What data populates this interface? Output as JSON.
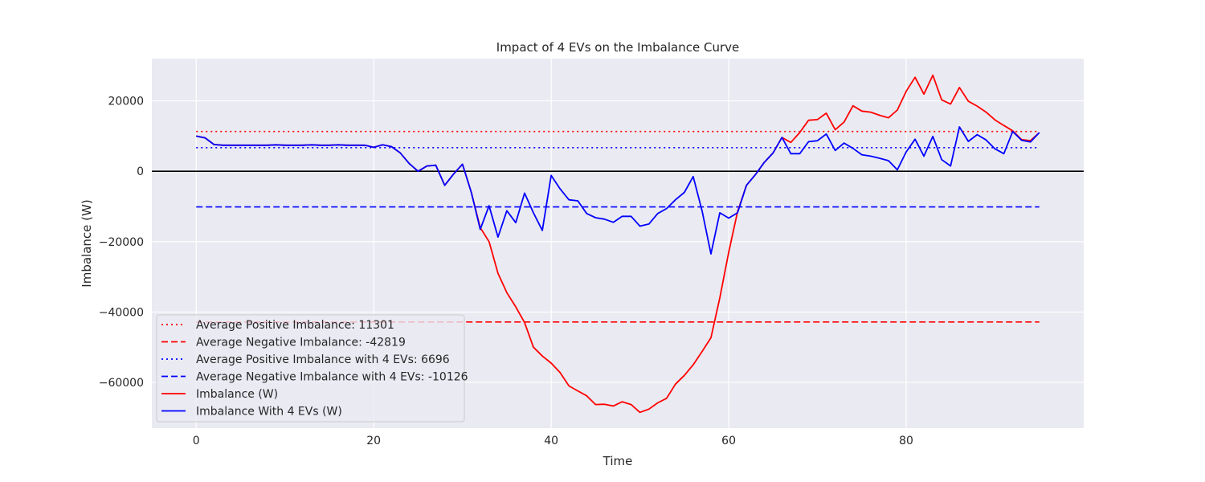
{
  "chart_data": {
    "type": "line",
    "title": "Impact of 4 EVs on the Imbalance Curve",
    "xlabel": "Time",
    "ylabel": "Imbalance (W)",
    "xlim": [
      -5,
      100
    ],
    "ylim": [
      -73000,
      32000
    ],
    "xticks": [
      0,
      20,
      40,
      60,
      80
    ],
    "yticks": [
      -60000,
      -40000,
      -20000,
      0,
      20000
    ],
    "ytick_labels": [
      "−60000",
      "−40000",
      "−20000",
      "0",
      "20000"
    ],
    "grid": true,
    "zero_line": true,
    "legend_position": "lower-left",
    "hlines": [
      {
        "name": "Average Positive Imbalance: 11301",
        "y": 11301,
        "color": "#ff0000",
        "dash": "dotted",
        "x_range": [
          0,
          95
        ]
      },
      {
        "name": "Average Negative Imbalance: -42819",
        "y": -42819,
        "color": "#ff0000",
        "dash": "dashed",
        "x_range": [
          0,
          95
        ]
      },
      {
        "name": "Average Positive Imbalance with 4 EVs: 6696",
        "y": 6696,
        "color": "#0000ff",
        "dash": "dotted",
        "x_range": [
          0,
          95
        ]
      },
      {
        "name": "Average Negative Imbalance with 4 EVs: -10126",
        "y": -10126,
        "color": "#0000ff",
        "dash": "dashed",
        "x_range": [
          0,
          95
        ]
      }
    ],
    "series": [
      {
        "name": "Imbalance (W)",
        "color": "#ff0000",
        "x": [
          0,
          1,
          2,
          3,
          4,
          5,
          6,
          7,
          8,
          9,
          10,
          11,
          12,
          13,
          14,
          15,
          16,
          17,
          18,
          19,
          20,
          21,
          22,
          23,
          24,
          25,
          26,
          27,
          28,
          29,
          30,
          31,
          32,
          33,
          34,
          35,
          36,
          37,
          38,
          39,
          40,
          41,
          42,
          43,
          44,
          45,
          46,
          47,
          48,
          49,
          50,
          51,
          52,
          53,
          54,
          55,
          56,
          57,
          58,
          59,
          60,
          61,
          62,
          63,
          64,
          65,
          66,
          67,
          68,
          69,
          70,
          71,
          72,
          73,
          74,
          75,
          76,
          77,
          78,
          79,
          80,
          81,
          82,
          83,
          84,
          85,
          86,
          87,
          88,
          89,
          90,
          91,
          92,
          93,
          94,
          95
        ],
        "values": [
          10000,
          9500,
          7600,
          7400,
          7400,
          7400,
          7400,
          7400,
          7400,
          7500,
          7400,
          7400,
          7400,
          7500,
          7400,
          7400,
          7500,
          7400,
          7400,
          7400,
          6800,
          7500,
          7000,
          5200,
          2200,
          0,
          1500,
          1700,
          -4000,
          -800,
          2000,
          -6000,
          -16000,
          -20000,
          -29000,
          -34500,
          -38500,
          -43000,
          -50000,
          -52500,
          -54500,
          -57200,
          -61000,
          -62400,
          -63800,
          -66300,
          -66200,
          -66700,
          -65500,
          -66300,
          -68500,
          -67600,
          -65800,
          -64500,
          -60500,
          -58000,
          -55000,
          -51200,
          -47300,
          -36000,
          -23000,
          -11500,
          -4000,
          -1000,
          2500,
          5200,
          9600,
          8200,
          11000,
          14500,
          14700,
          16500,
          11800,
          14000,
          18600,
          17100,
          16800,
          15900,
          15200,
          17400,
          22700,
          26700,
          21900,
          27300,
          20300,
          19100,
          23800,
          19900,
          18500,
          16800,
          14600,
          13000,
          11500,
          9000,
          8700,
          11000
        ]
      },
      {
        "name": "Imbalance With 4 EVs (W)",
        "color": "#0000ff",
        "x": [
          0,
          1,
          2,
          3,
          4,
          5,
          6,
          7,
          8,
          9,
          10,
          11,
          12,
          13,
          14,
          15,
          16,
          17,
          18,
          19,
          20,
          21,
          22,
          23,
          24,
          25,
          26,
          27,
          28,
          29,
          30,
          31,
          32,
          33,
          34,
          35,
          36,
          37,
          38,
          39,
          40,
          41,
          42,
          43,
          44,
          45,
          46,
          47,
          48,
          49,
          50,
          51,
          52,
          53,
          54,
          55,
          56,
          57,
          58,
          59,
          60,
          61,
          62,
          63,
          64,
          65,
          66,
          67,
          68,
          69,
          70,
          71,
          72,
          73,
          74,
          75,
          76,
          77,
          78,
          79,
          80,
          81,
          82,
          83,
          84,
          85,
          86,
          87,
          88,
          89,
          90,
          91,
          92,
          93,
          94,
          95
        ],
        "values": [
          10000,
          9500,
          7600,
          7400,
          7400,
          7400,
          7400,
          7400,
          7400,
          7500,
          7400,
          7400,
          7400,
          7500,
          7400,
          7400,
          7500,
          7400,
          7400,
          7400,
          6800,
          7500,
          7000,
          5200,
          2200,
          0,
          1500,
          1700,
          -4000,
          -800,
          2000,
          -6000,
          -16500,
          -9800,
          -18700,
          -11200,
          -14600,
          -6200,
          -11800,
          -16800,
          -1200,
          -5000,
          -8100,
          -8400,
          -12000,
          -13200,
          -13600,
          -14500,
          -12800,
          -12800,
          -15600,
          -15000,
          -12000,
          -10600,
          -8100,
          -6000,
          -1500,
          -11300,
          -23500,
          -11800,
          -13300,
          -11800,
          -4000,
          -1000,
          2500,
          5200,
          9600,
          5000,
          5000,
          8400,
          8700,
          10600,
          5900,
          8000,
          6500,
          4700,
          4300,
          3700,
          3000,
          400,
          5500,
          9100,
          4300,
          9900,
          3300,
          1500,
          12600,
          8500,
          10400,
          8900,
          6400,
          5000,
          11300,
          8800,
          8300,
          11000
        ]
      }
    ]
  }
}
